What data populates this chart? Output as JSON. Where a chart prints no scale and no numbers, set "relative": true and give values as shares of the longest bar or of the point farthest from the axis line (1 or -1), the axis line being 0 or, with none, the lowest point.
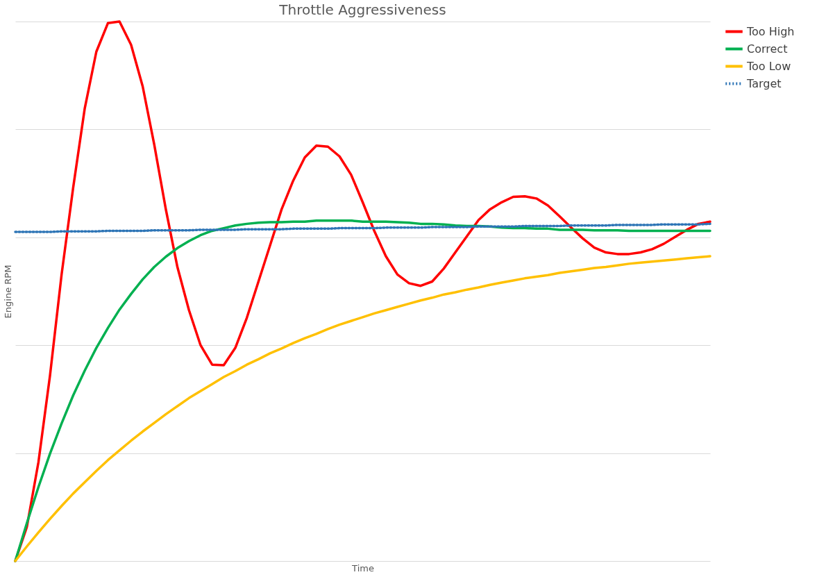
{
  "chart_data": {
    "type": "line",
    "title": "Throttle Aggressiveness",
    "xlabel": "Time",
    "ylabel": "Engine RPM",
    "relative": true,
    "grid": "y",
    "legend": "right",
    "categories": [
      null,
      null,
      null,
      null,
      null,
      null,
      null,
      null,
      null,
      null,
      null,
      null,
      null,
      null,
      null,
      null,
      null,
      null,
      null,
      null,
      null,
      null,
      null,
      null,
      null,
      null,
      null,
      null,
      null,
      null,
      null,
      null,
      null,
      null,
      null,
      null,
      null,
      null,
      null,
      null,
      null,
      null,
      null,
      null,
      null,
      null,
      null,
      null,
      null,
      null,
      null,
      null,
      null,
      null,
      null,
      null,
      null,
      null,
      null,
      null,
      null
    ],
    "series": [
      {
        "name": "Too High",
        "color": "#ff0000",
        "line_style": "solid",
        "values": [
          0,
          0.063,
          0.183,
          0.344,
          0.531,
          0.692,
          0.839,
          0.944,
          0.997,
          1,
          0.957,
          0.88,
          0.772,
          0.652,
          0.545,
          0.465,
          0.4,
          0.364,
          0.363,
          0.395,
          0.451,
          0.518,
          0.585,
          0.652,
          0.705,
          0.748,
          0.77,
          0.768,
          0.75,
          0.716,
          0.665,
          0.612,
          0.565,
          0.531,
          0.515,
          0.51,
          0.518,
          0.542,
          0.572,
          0.602,
          0.632,
          0.652,
          0.665,
          0.675,
          0.676,
          0.672,
          0.659,
          0.639,
          0.618,
          0.598,
          0.581,
          0.572,
          0.569,
          0.569,
          0.572,
          0.578,
          0.588,
          0.601,
          0.614,
          0.625,
          0.629
        ]
      },
      {
        "name": "Correct",
        "color": "#00b050",
        "line_style": "solid",
        "values": [
          0,
          0.07,
          0.137,
          0.199,
          0.255,
          0.307,
          0.353,
          0.395,
          0.432,
          0.466,
          0.495,
          0.522,
          0.545,
          0.564,
          0.58,
          0.593,
          0.604,
          0.612,
          0.617,
          0.622,
          0.625,
          0.627,
          0.628,
          0.628,
          0.629,
          0.629,
          0.631,
          0.631,
          0.631,
          0.631,
          0.629,
          0.629,
          0.629,
          0.628,
          0.627,
          0.625,
          0.625,
          0.624,
          0.622,
          0.621,
          0.621,
          0.62,
          0.618,
          0.617,
          0.617,
          0.616,
          0.616,
          0.614,
          0.614,
          0.614,
          0.613,
          0.613,
          0.613,
          0.612,
          0.612,
          0.612,
          0.612,
          0.612,
          0.612,
          0.612,
          0.612
        ]
      },
      {
        "name": "Too Low",
        "color": "#ffc000",
        "line_style": "solid",
        "values": [
          0,
          0.027,
          0.053,
          0.078,
          0.102,
          0.125,
          0.146,
          0.167,
          0.187,
          0.205,
          0.223,
          0.24,
          0.256,
          0.272,
          0.287,
          0.302,
          0.315,
          0.328,
          0.341,
          0.352,
          0.364,
          0.374,
          0.385,
          0.394,
          0.404,
          0.413,
          0.421,
          0.43,
          0.438,
          0.445,
          0.452,
          0.459,
          0.465,
          0.471,
          0.477,
          0.483,
          0.488,
          0.494,
          0.498,
          0.503,
          0.507,
          0.512,
          0.516,
          0.52,
          0.524,
          0.527,
          0.53,
          0.534,
          0.537,
          0.54,
          0.543,
          0.545,
          0.548,
          0.551,
          0.553,
          0.555,
          0.557,
          0.559,
          0.561,
          0.563,
          0.565
        ]
      },
      {
        "name": "Target",
        "color": "#2e75b6",
        "line_style": "dotted",
        "values": [
          0.61,
          0.61,
          0.61,
          0.61,
          0.611,
          0.611,
          0.611,
          0.611,
          0.612,
          0.612,
          0.612,
          0.612,
          0.613,
          0.613,
          0.613,
          0.613,
          0.614,
          0.614,
          0.614,
          0.614,
          0.615,
          0.615,
          0.615,
          0.615,
          0.616,
          0.616,
          0.616,
          0.616,
          0.617,
          0.617,
          0.617,
          0.617,
          0.618,
          0.618,
          0.618,
          0.618,
          0.619,
          0.619,
          0.619,
          0.619,
          0.62,
          0.62,
          0.62,
          0.62,
          0.621,
          0.621,
          0.621,
          0.621,
          0.622,
          0.622,
          0.622,
          0.622,
          0.623,
          0.623,
          0.623,
          0.623,
          0.624,
          0.624,
          0.624,
          0.624,
          0.625
        ]
      }
    ]
  }
}
